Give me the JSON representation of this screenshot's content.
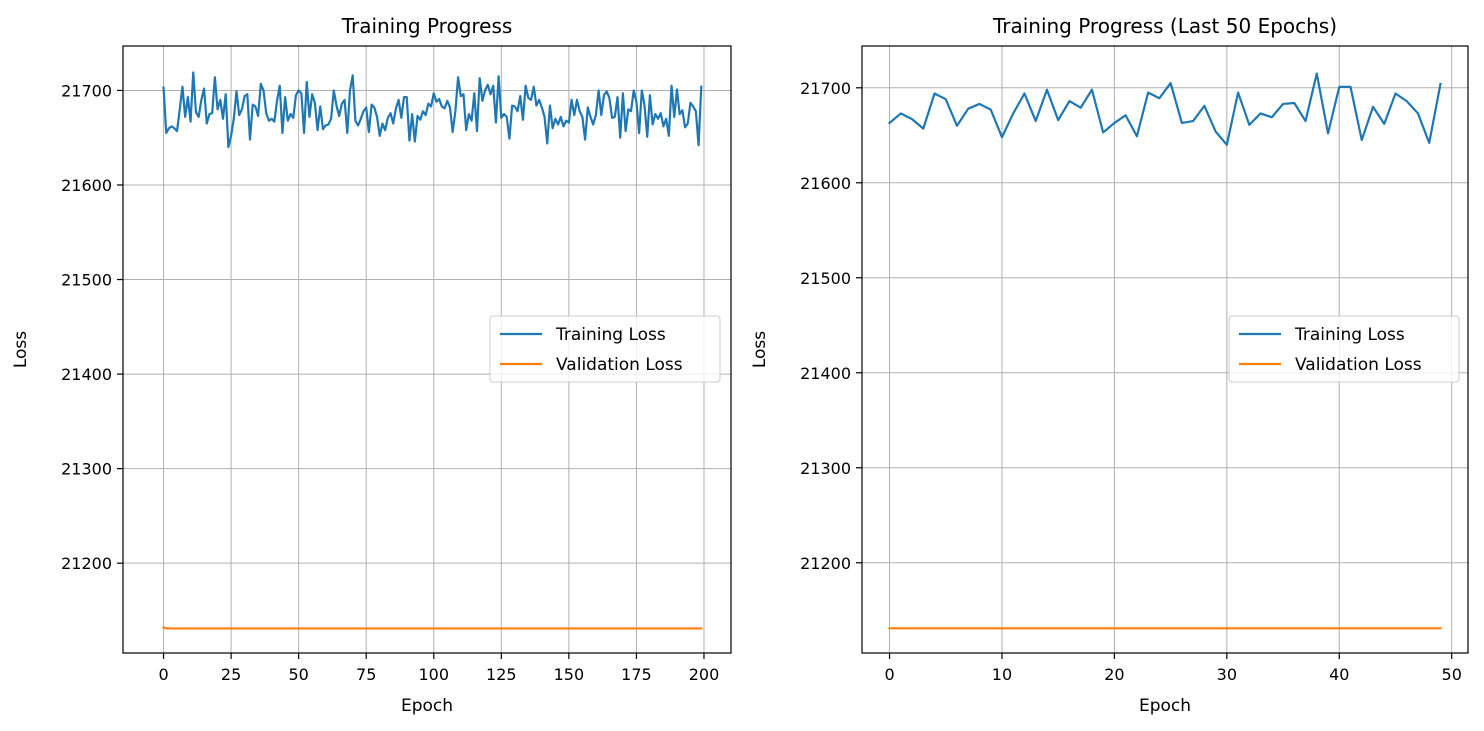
{
  "chart_data": [
    {
      "type": "line",
      "title": "Training Progress",
      "xlabel": "Epoch",
      "ylabel": "Loss",
      "xlim": [
        -15,
        210
      ],
      "ylim": [
        21105,
        21747
      ],
      "xticks": [
        0,
        25,
        50,
        75,
        100,
        125,
        150,
        175,
        200
      ],
      "yticks": [
        21200,
        21300,
        21400,
        21500,
        21600,
        21700
      ],
      "xtick_labels": [
        "0",
        "25",
        "50",
        "75",
        "100",
        "125",
        "150",
        "175",
        "200"
      ],
      "ytick_labels": [
        "21200",
        "21300",
        "21400",
        "21500",
        "21600",
        "21700"
      ],
      "grid": true,
      "legend_position": "center-right",
      "series": [
        {
          "name": "Training Loss",
          "color": "#1f77b4",
          "x_start": 0,
          "values": [
            21703,
            21655,
            21660,
            21662,
            21660,
            21657,
            21680,
            21704,
            21672,
            21693,
            21667,
            21719,
            21677,
            21672,
            21690,
            21702,
            21665,
            21675,
            21676,
            21714,
            21680,
            21690,
            21670,
            21696,
            21640,
            21652,
            21670,
            21699,
            21674,
            21680,
            21694,
            21696,
            21648,
            21685,
            21683,
            21673,
            21707,
            21700,
            21676,
            21668,
            21670,
            21667,
            21689,
            21705,
            21655,
            21693,
            21668,
            21675,
            21671,
            21695,
            21700,
            21697,
            21655,
            21709,
            21672,
            21696,
            21687,
            21658,
            21683,
            21659,
            21663,
            21664,
            21670,
            21700,
            21684,
            21673,
            21686,
            21690,
            21655,
            21700,
            21716,
            21668,
            21663,
            21670,
            21678,
            21682,
            21656,
            21685,
            21682,
            21672,
            21652,
            21665,
            21658,
            21671,
            21676,
            21665,
            21681,
            21690,
            21671,
            21693,
            21693,
            21647,
            21675,
            21646,
            21673,
            21669,
            21678,
            21674,
            21686,
            21683,
            21697,
            21688,
            21691,
            21683,
            21681,
            21689,
            21682,
            21656,
            21678,
            21714,
            21694,
            21696,
            21658,
            21675,
            21668,
            21697,
            21657,
            21713,
            21689,
            21700,
            21706,
            21696,
            21705,
            21666,
            21715,
            21671,
            21675,
            21672,
            21649,
            21684,
            21683,
            21678,
            21694,
            21669,
            21705,
            21692,
            21690,
            21704,
            21684,
            21690,
            21682,
            21672,
            21644,
            21684,
            21660,
            21670,
            21664,
            21672,
            21662,
            21668,
            21666,
            21690,
            21674,
            21690,
            21678,
            21672,
            21648,
            21682,
            21672,
            21664,
            21674,
            21700,
            21674,
            21695,
            21699,
            21692,
            21671,
            21672,
            21693,
            21650,
            21697,
            21657,
            21680,
            21678,
            21700,
            21688,
            21655,
            21700,
            21684,
            21651,
            21695,
            21664,
            21675,
            21670,
            21676,
            21662,
            21670,
            21652,
            21705,
            21672,
            21701,
            21675,
            21679,
            21661,
            21665,
            21687,
            21683,
            21678,
            21642,
            21704
          ]
        },
        {
          "name": "Validation Loss",
          "color": "#ff7f0e",
          "x_start": 0,
          "values": [
            21132,
            21131,
            21131,
            21131,
            21131,
            21131,
            21131,
            21131,
            21131,
            21131,
            21131,
            21131,
            21131,
            21131,
            21131,
            21131,
            21131,
            21131,
            21131,
            21131,
            21131,
            21131,
            21131,
            21131,
            21131,
            21131,
            21131,
            21131,
            21131,
            21131,
            21131,
            21131,
            21131,
            21131,
            21131,
            21131,
            21131,
            21131,
            21131,
            21131,
            21131,
            21131,
            21131,
            21131,
            21131,
            21131,
            21131,
            21131,
            21131,
            21131,
            21131,
            21131,
            21131,
            21131,
            21131,
            21131,
            21131,
            21131,
            21131,
            21131,
            21131,
            21131,
            21131,
            21131,
            21131,
            21131,
            21131,
            21131,
            21131,
            21131,
            21131,
            21131,
            21131,
            21131,
            21131,
            21131,
            21131,
            21131,
            21131,
            21131,
            21131,
            21131,
            21131,
            21131,
            21131,
            21131,
            21131,
            21131,
            21131,
            21131,
            21131,
            21131,
            21131,
            21131,
            21131,
            21131,
            21131,
            21131,
            21131,
            21131,
            21131,
            21131,
            21131,
            21131,
            21131,
            21131,
            21131,
            21131,
            21131,
            21131,
            21131,
            21131,
            21131,
            21131,
            21131,
            21131,
            21131,
            21131,
            21131,
            21131,
            21131,
            21131,
            21131,
            21131,
            21131,
            21131,
            21131,
            21131,
            21131,
            21131,
            21131,
            21131,
            21131,
            21131,
            21131,
            21131,
            21131,
            21131,
            21131,
            21131,
            21131,
            21131,
            21131,
            21131,
            21131,
            21131,
            21131,
            21131,
            21131,
            21131,
            21131,
            21131,
            21131,
            21131,
            21131,
            21131,
            21131,
            21131,
            21131,
            21131,
            21131,
            21131,
            21131,
            21131,
            21131,
            21131,
            21131,
            21131,
            21131,
            21131,
            21131,
            21131,
            21131,
            21131,
            21131,
            21131,
            21131,
            21131,
            21131,
            21131,
            21131,
            21131,
            21131,
            21131,
            21131,
            21131,
            21131,
            21131,
            21131,
            21131,
            21131,
            21131,
            21131,
            21131,
            21131,
            21131,
            21131,
            21131,
            21131,
            21131
          ]
        }
      ]
    },
    {
      "type": "line",
      "title": "Training Progress (Last 50 Epochs)",
      "xlabel": "Epoch",
      "ylabel": "Loss",
      "xlim": [
        -2.45,
        51.45
      ],
      "ylim": [
        21105,
        21744
      ],
      "xticks": [
        0,
        10,
        20,
        30,
        40,
        50
      ],
      "yticks": [
        21200,
        21300,
        21400,
        21500,
        21600,
        21700
      ],
      "xtick_labels": [
        "0",
        "10",
        "20",
        "30",
        "40",
        "50"
      ],
      "ytick_labels": [
        "21200",
        "21300",
        "21400",
        "21500",
        "21600",
        "21700"
      ],
      "grid": true,
      "legend_position": "center-right",
      "series": [
        {
          "name": "Training Loss",
          "color": "#1f77b4",
          "x_start": 0,
          "values": [
            21663,
            21673,
            21667,
            21657,
            21694,
            21688,
            21660,
            21678,
            21683,
            21677,
            21648,
            21673,
            21694,
            21665,
            21698,
            21666,
            21686,
            21679,
            21698,
            21653,
            21663,
            21671,
            21649,
            21695,
            21689,
            21705,
            21663,
            21665,
            21681,
            21654,
            21640,
            21695,
            21661,
            21673,
            21669,
            21683,
            21684,
            21665,
            21715,
            21652,
            21701,
            21701,
            21645,
            21680,
            21662,
            21694,
            21686,
            21673,
            21642,
            21704
          ]
        },
        {
          "name": "Validation Loss",
          "color": "#ff7f0e",
          "x_start": 0,
          "values": [
            21131,
            21131,
            21131,
            21131,
            21131,
            21131,
            21131,
            21131,
            21131,
            21131,
            21131,
            21131,
            21131,
            21131,
            21131,
            21131,
            21131,
            21131,
            21131,
            21131,
            21131,
            21131,
            21131,
            21131,
            21131,
            21131,
            21131,
            21131,
            21131,
            21131,
            21131,
            21131,
            21131,
            21131,
            21131,
            21131,
            21131,
            21131,
            21131,
            21131,
            21131,
            21131,
            21131,
            21131,
            21131,
            21131,
            21131,
            21131,
            21131,
            21131
          ]
        }
      ]
    }
  ]
}
